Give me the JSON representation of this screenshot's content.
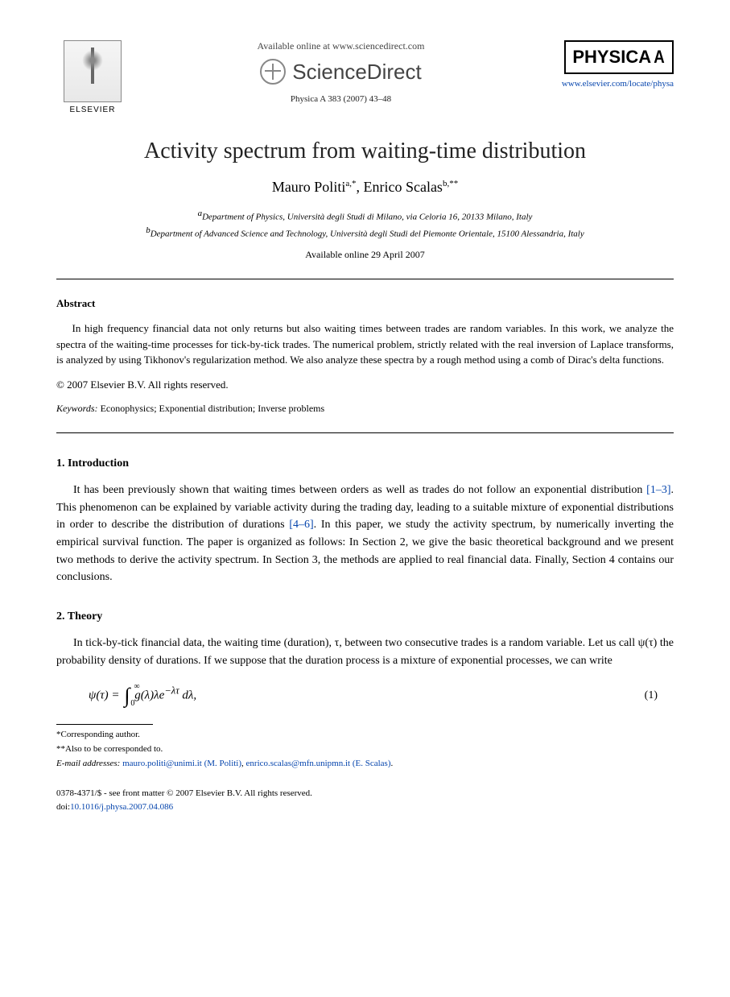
{
  "header": {
    "available_text": "Available online at www.sciencedirect.com",
    "sciencedirect_label": "ScienceDirect",
    "citation": "Physica A 383 (2007) 43–48",
    "elsevier_label": "ELSEVIER",
    "physica_label": "PHYSICA",
    "physica_letter": "A",
    "journal_url": "www.elsevier.com/locate/physa"
  },
  "title": "Activity spectrum from waiting-time distribution",
  "authors": {
    "a1_name": "Mauro Politi",
    "a1_marks": "a,*",
    "a2_name": "Enrico Scalas",
    "a2_marks": "b,**"
  },
  "affiliations": {
    "a": "Department of Physics, Università degli Studi di Milano, via Celoria 16, 20133 Milano, Italy",
    "b": "Department of Advanced Science and Technology, Università degli Studi del Piemonte Orientale, 15100 Alessandria, Italy"
  },
  "available_date": "Available online 29 April 2007",
  "abstract": {
    "label": "Abstract",
    "text": "In high frequency financial data not only returns but also waiting times between trades are random variables. In this work, we analyze the spectra of the waiting-time processes for tick-by-tick trades. The numerical problem, strictly related with the real inversion of Laplace transforms, is analyzed by using Tikhonov's regularization method. We also analyze these spectra by a rough method using a comb of Dirac's delta functions.",
    "copyright": "© 2007 Elsevier B.V. All rights reserved."
  },
  "keywords": {
    "label": "Keywords:",
    "text": "Econophysics; Exponential distribution; Inverse problems"
  },
  "sections": {
    "intro": {
      "heading": "1. Introduction",
      "p1a": "It has been previously shown that waiting times between orders as well as trades do not follow an exponential distribution ",
      "ref1": "[1–3]",
      "p1b": ". This phenomenon can be explained by variable activity during the trading day, leading to a suitable mixture of exponential distributions in order to describe the distribution of durations ",
      "ref2": "[4–6]",
      "p1c": ". In this paper, we study the activity spectrum, by numerically inverting the empirical survival function. The paper is organized as follows: In Section 2, we give the basic theoretical background and we present two methods to derive the activity spectrum. In Section 3, the methods are applied to real financial data. Finally, Section 4 contains our conclusions."
    },
    "theory": {
      "heading": "2. Theory",
      "p1": "In tick-by-tick financial data, the waiting time (duration), τ, between two consecutive trades is a random variable. Let us call ψ(τ) the probability density of durations. If we suppose that the duration process is a mixture of exponential processes, we can write"
    }
  },
  "equation": {
    "lhs": "ψ(τ) = ",
    "upper": "∞",
    "lower": "0",
    "integrand": "g(λ)λe",
    "exponent": "−λτ",
    "dlambda": " dλ,",
    "number": "(1)"
  },
  "footnotes": {
    "f1": "*Corresponding author.",
    "f2": "**Also to be corresponded to.",
    "email_label": "E-mail addresses:",
    "email1": "mauro.politi@unimi.it (M. Politi)",
    "email2": "enrico.scalas@mfn.unipmn.it (E. Scalas)",
    "email_sep": ", ",
    "email_end": "."
  },
  "footer": {
    "line1": "0378-4371/$ - see front matter © 2007 Elsevier B.V. All rights reserved.",
    "doi_label": "doi:",
    "doi": "10.1016/j.physa.2007.04.086"
  }
}
